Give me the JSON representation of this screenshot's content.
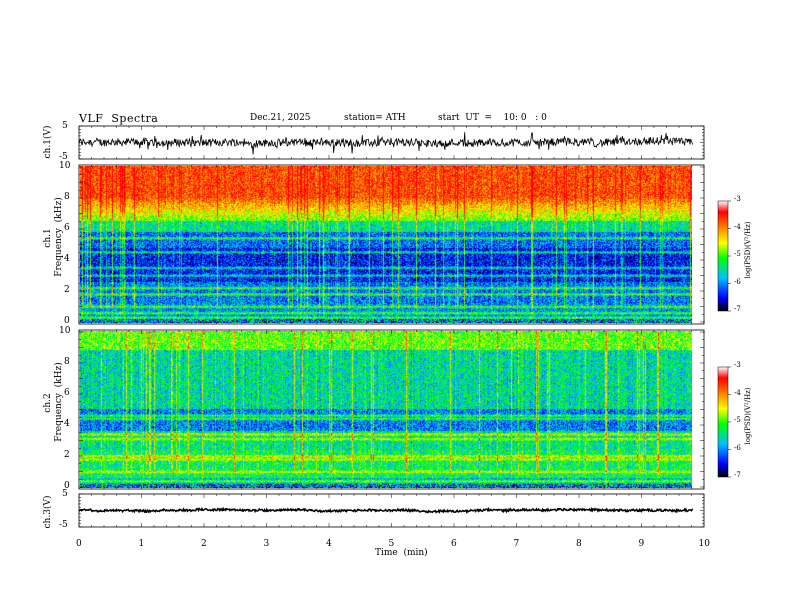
{
  "header": {
    "title": "VLF  Spectra",
    "date": "Dec.21, 2025",
    "station": "station= ATH",
    "start_ut": "start  UT  =    10: 0   : 0"
  },
  "panels": {
    "ch1": {
      "ylabel": "ch.1(V)",
      "ticks": [
        "5",
        "-5"
      ]
    },
    "spec1": {
      "ylabel_1": "ch.1",
      "ylabel_2": "Frequency  (kHz)",
      "ticks": [
        "10",
        "8",
        "6",
        "4",
        "2",
        "0"
      ]
    },
    "spec2": {
      "ylabel_1": "ch.2",
      "ylabel_2": "Frequency  (kHz)",
      "ticks": [
        "10",
        "8",
        "6",
        "4",
        "2",
        "0"
      ]
    },
    "ch3": {
      "ylabel": "ch.3(V)",
      "ticks": [
        "5",
        "-5"
      ]
    }
  },
  "colorbar": {
    "label": "log(PSD)(V²/Hz)",
    "ticks": [
      "-3",
      "-4",
      "-5",
      "-6",
      "-7"
    ],
    "colors": [
      "#000000",
      "#0000ff",
      "#00c0ff",
      "#00ff00",
      "#ffff00",
      "#ff8000",
      "#ff0000",
      "#ffffff"
    ]
  },
  "xaxis": {
    "label": "Time  (min)",
    "ticks": [
      "0",
      "1",
      "2",
      "3",
      "4",
      "5",
      "6",
      "7",
      "8",
      "9",
      "10"
    ]
  },
  "chart_data": [
    {
      "type": "line",
      "title": "ch.1(V)",
      "ylabel": "ch.1(V)",
      "xlabel": "Time (min)",
      "xlim": [
        0,
        10
      ],
      "ylim": [
        -5,
        5
      ],
      "x_data_end": 9.82,
      "description_values": {
        "baseline": 0,
        "typical_amplitude": 1.2
      }
    },
    {
      "type": "heatmap",
      "title": "ch.1 Frequency (kHz)",
      "xlabel": "Time (min)",
      "ylabel": "Frequency (kHz)",
      "xlim": [
        0,
        10
      ],
      "ylim": [
        0,
        10
      ],
      "colorbar_range": [
        -7,
        -3
      ],
      "colorbar_label": "log(PSD)(V²/Hz)",
      "frequency_bands_kHz": [
        0.3,
        0.6,
        1.0,
        1.8,
        2.2,
        3.0,
        3.5,
        4.5,
        5.4
      ],
      "upper_band_high_power_above_kHz": 6.5
    },
    {
      "type": "heatmap",
      "title": "ch.2 Frequency (kHz)",
      "xlabel": "Time (min)",
      "ylabel": "Frequency (kHz)",
      "xlim": [
        0,
        10
      ],
      "ylim": [
        0,
        10
      ],
      "colorbar_range": [
        -7,
        -3
      ],
      "colorbar_label": "log(PSD)(V²/Hz)",
      "frequency_bands_kHz": [
        0.4,
        1.0,
        1.8,
        2.0,
        3.1,
        3.4,
        4.4,
        4.6
      ],
      "upper_band_high_power_above_kHz": 8.5
    },
    {
      "type": "line",
      "title": "ch.3(V)",
      "ylabel": "ch.3(V)",
      "xlabel": "Time (min)",
      "xlim": [
        0,
        10
      ],
      "ylim": [
        -5,
        5
      ],
      "x_data_end": 9.82,
      "description_values": {
        "baseline": 0,
        "typical_amplitude": 0.3
      }
    }
  ]
}
